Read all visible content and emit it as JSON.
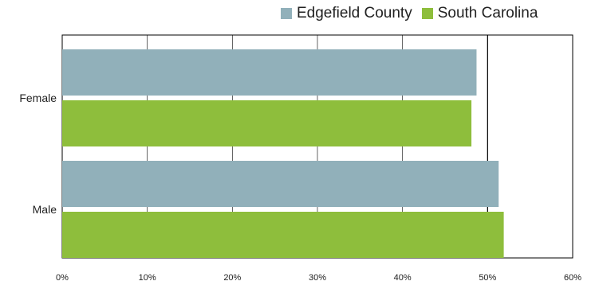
{
  "chart_data": {
    "type": "bar",
    "orientation": "horizontal",
    "categories": [
      "Female",
      "Male"
    ],
    "series": [
      {
        "name": "Edgefield County",
        "color": "#91b0ba",
        "values": [
          48.7,
          51.3
        ]
      },
      {
        "name": "South Carolina",
        "color": "#8ebe3c",
        "values": [
          48.1,
          51.9
        ]
      }
    ],
    "xlim": [
      0,
      60
    ],
    "xticks": [
      "0%",
      "10%",
      "20%",
      "30%",
      "40%",
      "50%",
      "60%"
    ],
    "grid": true,
    "reference_line": 50,
    "legend_position": "top-right"
  }
}
